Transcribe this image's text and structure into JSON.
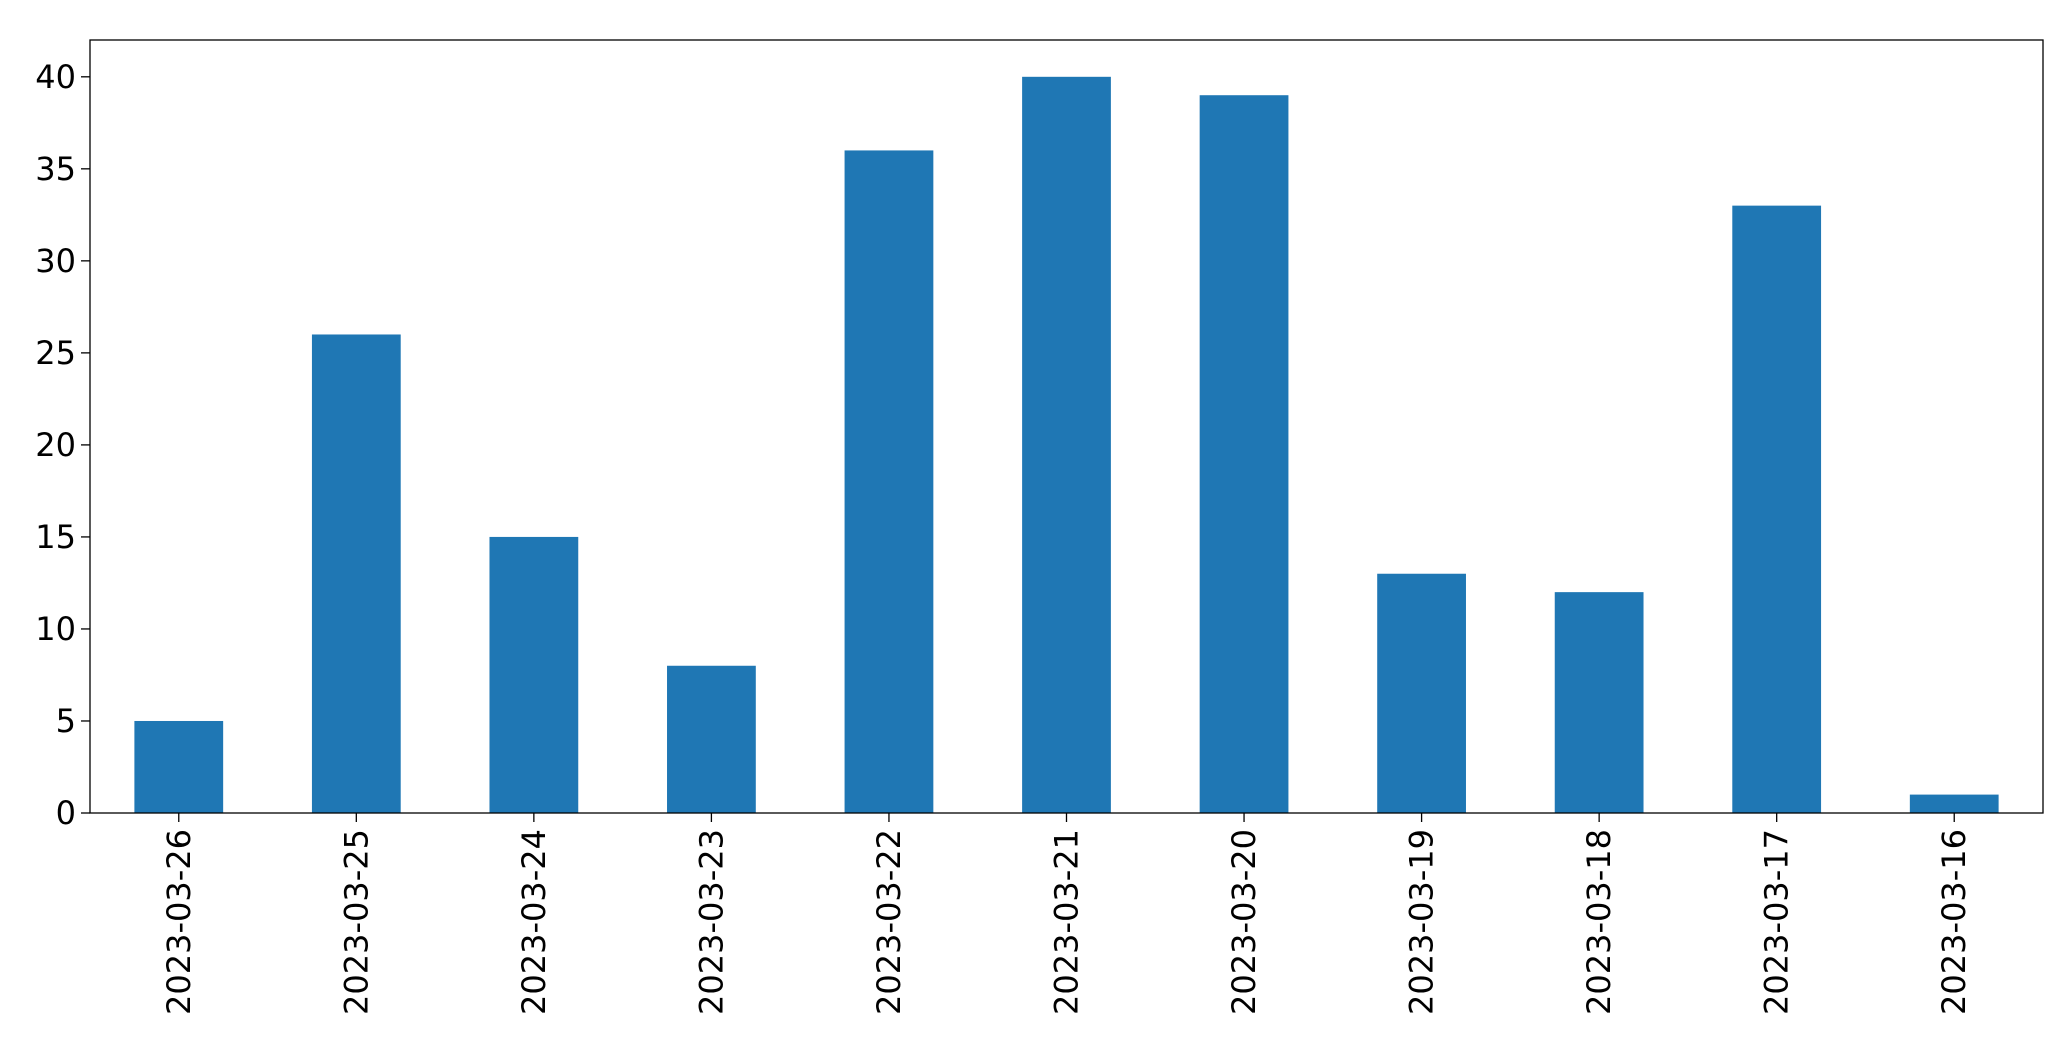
{
  "chart_data": {
    "type": "bar",
    "title": "",
    "xlabel": "",
    "ylabel": "",
    "categories": [
      "2023-03-26",
      "2023-03-25",
      "2023-03-24",
      "2023-03-23",
      "2023-03-22",
      "2023-03-21",
      "2023-03-20",
      "2023-03-19",
      "2023-03-18",
      "2023-03-17",
      "2023-03-16"
    ],
    "values": [
      5,
      26,
      15,
      8,
      36,
      40,
      39,
      13,
      12,
      33,
      1
    ],
    "ylim": [
      0,
      42
    ],
    "yticks": [
      0,
      5,
      10,
      15,
      20,
      25,
      30,
      35,
      40
    ],
    "grid": false,
    "legend": "none",
    "bar_color": "#1f77b4"
  }
}
